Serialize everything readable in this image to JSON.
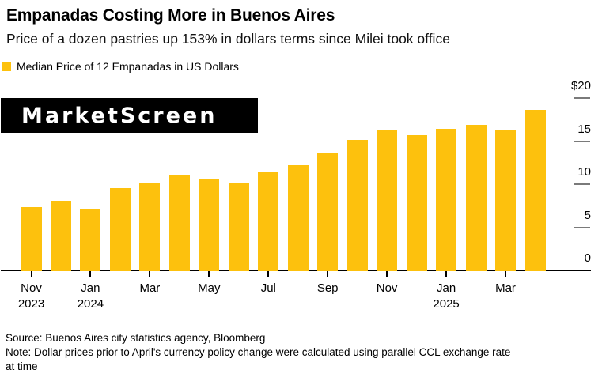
{
  "header": {
    "title": "Empanadas Costing More in Buenos Aires",
    "subtitle": "Price of a dozen pastries up 153% in dollars terms since Milei took office"
  },
  "legend": {
    "label": "Median Price of 12 Empanadas in US Dollars",
    "swatch_color": "#FDC10D"
  },
  "logo": {
    "text": "MarketScreen"
  },
  "chart_data": {
    "type": "bar",
    "title": "Median Price of 12 Empanadas in US Dollars",
    "xlabel": "",
    "ylabel": "US Dollars",
    "ylim": [
      0,
      20
    ],
    "grid": false,
    "y_axis_position": "right",
    "legend_position": "top-left",
    "bar_color": "#FDC10D",
    "axis_color": "#000000",
    "tick_dash_color": "#7a7a7a",
    "categories": [
      "Nov 2023",
      "Dec 2023",
      "Jan 2024",
      "Feb 2024",
      "Mar 2024",
      "Apr 2024",
      "May 2024",
      "Jun 2024",
      "Jul 2024",
      "Aug 2024",
      "Sep 2024",
      "Oct 2024",
      "Nov 2024",
      "Dec 2024",
      "Jan 2025",
      "Feb 2025",
      "Mar 2025",
      "Apr 2025"
    ],
    "values": [
      7.4,
      8.2,
      7.2,
      9.6,
      10.2,
      11.1,
      10.6,
      10.3,
      11.5,
      12.3,
      13.7,
      15.2,
      16.4,
      15.8,
      16.5,
      17.0,
      16.3,
      18.7
    ],
    "y_ticks": [
      0,
      5,
      10,
      15,
      20
    ],
    "y_tick_labels": [
      "0",
      "5",
      "10",
      "15",
      "$20"
    ],
    "x_ticks": [
      {
        "month": "Nov",
        "year": "2023"
      },
      {
        "month": "Jan",
        "year": "2024"
      },
      {
        "month": "Mar"
      },
      {
        "month": "May"
      },
      {
        "month": "Jul"
      },
      {
        "month": "Sep"
      },
      {
        "month": "Nov"
      },
      {
        "month": "Jan",
        "year": "2025"
      },
      {
        "month": "Mar"
      }
    ]
  },
  "footer": {
    "source": "Source: Buenos Aires city statistics agency, Bloomberg",
    "note_line1": "Note: Dollar prices prior to April's currency policy change were calculated using parallel CCL exchange rate",
    "note_line2": "at time"
  }
}
